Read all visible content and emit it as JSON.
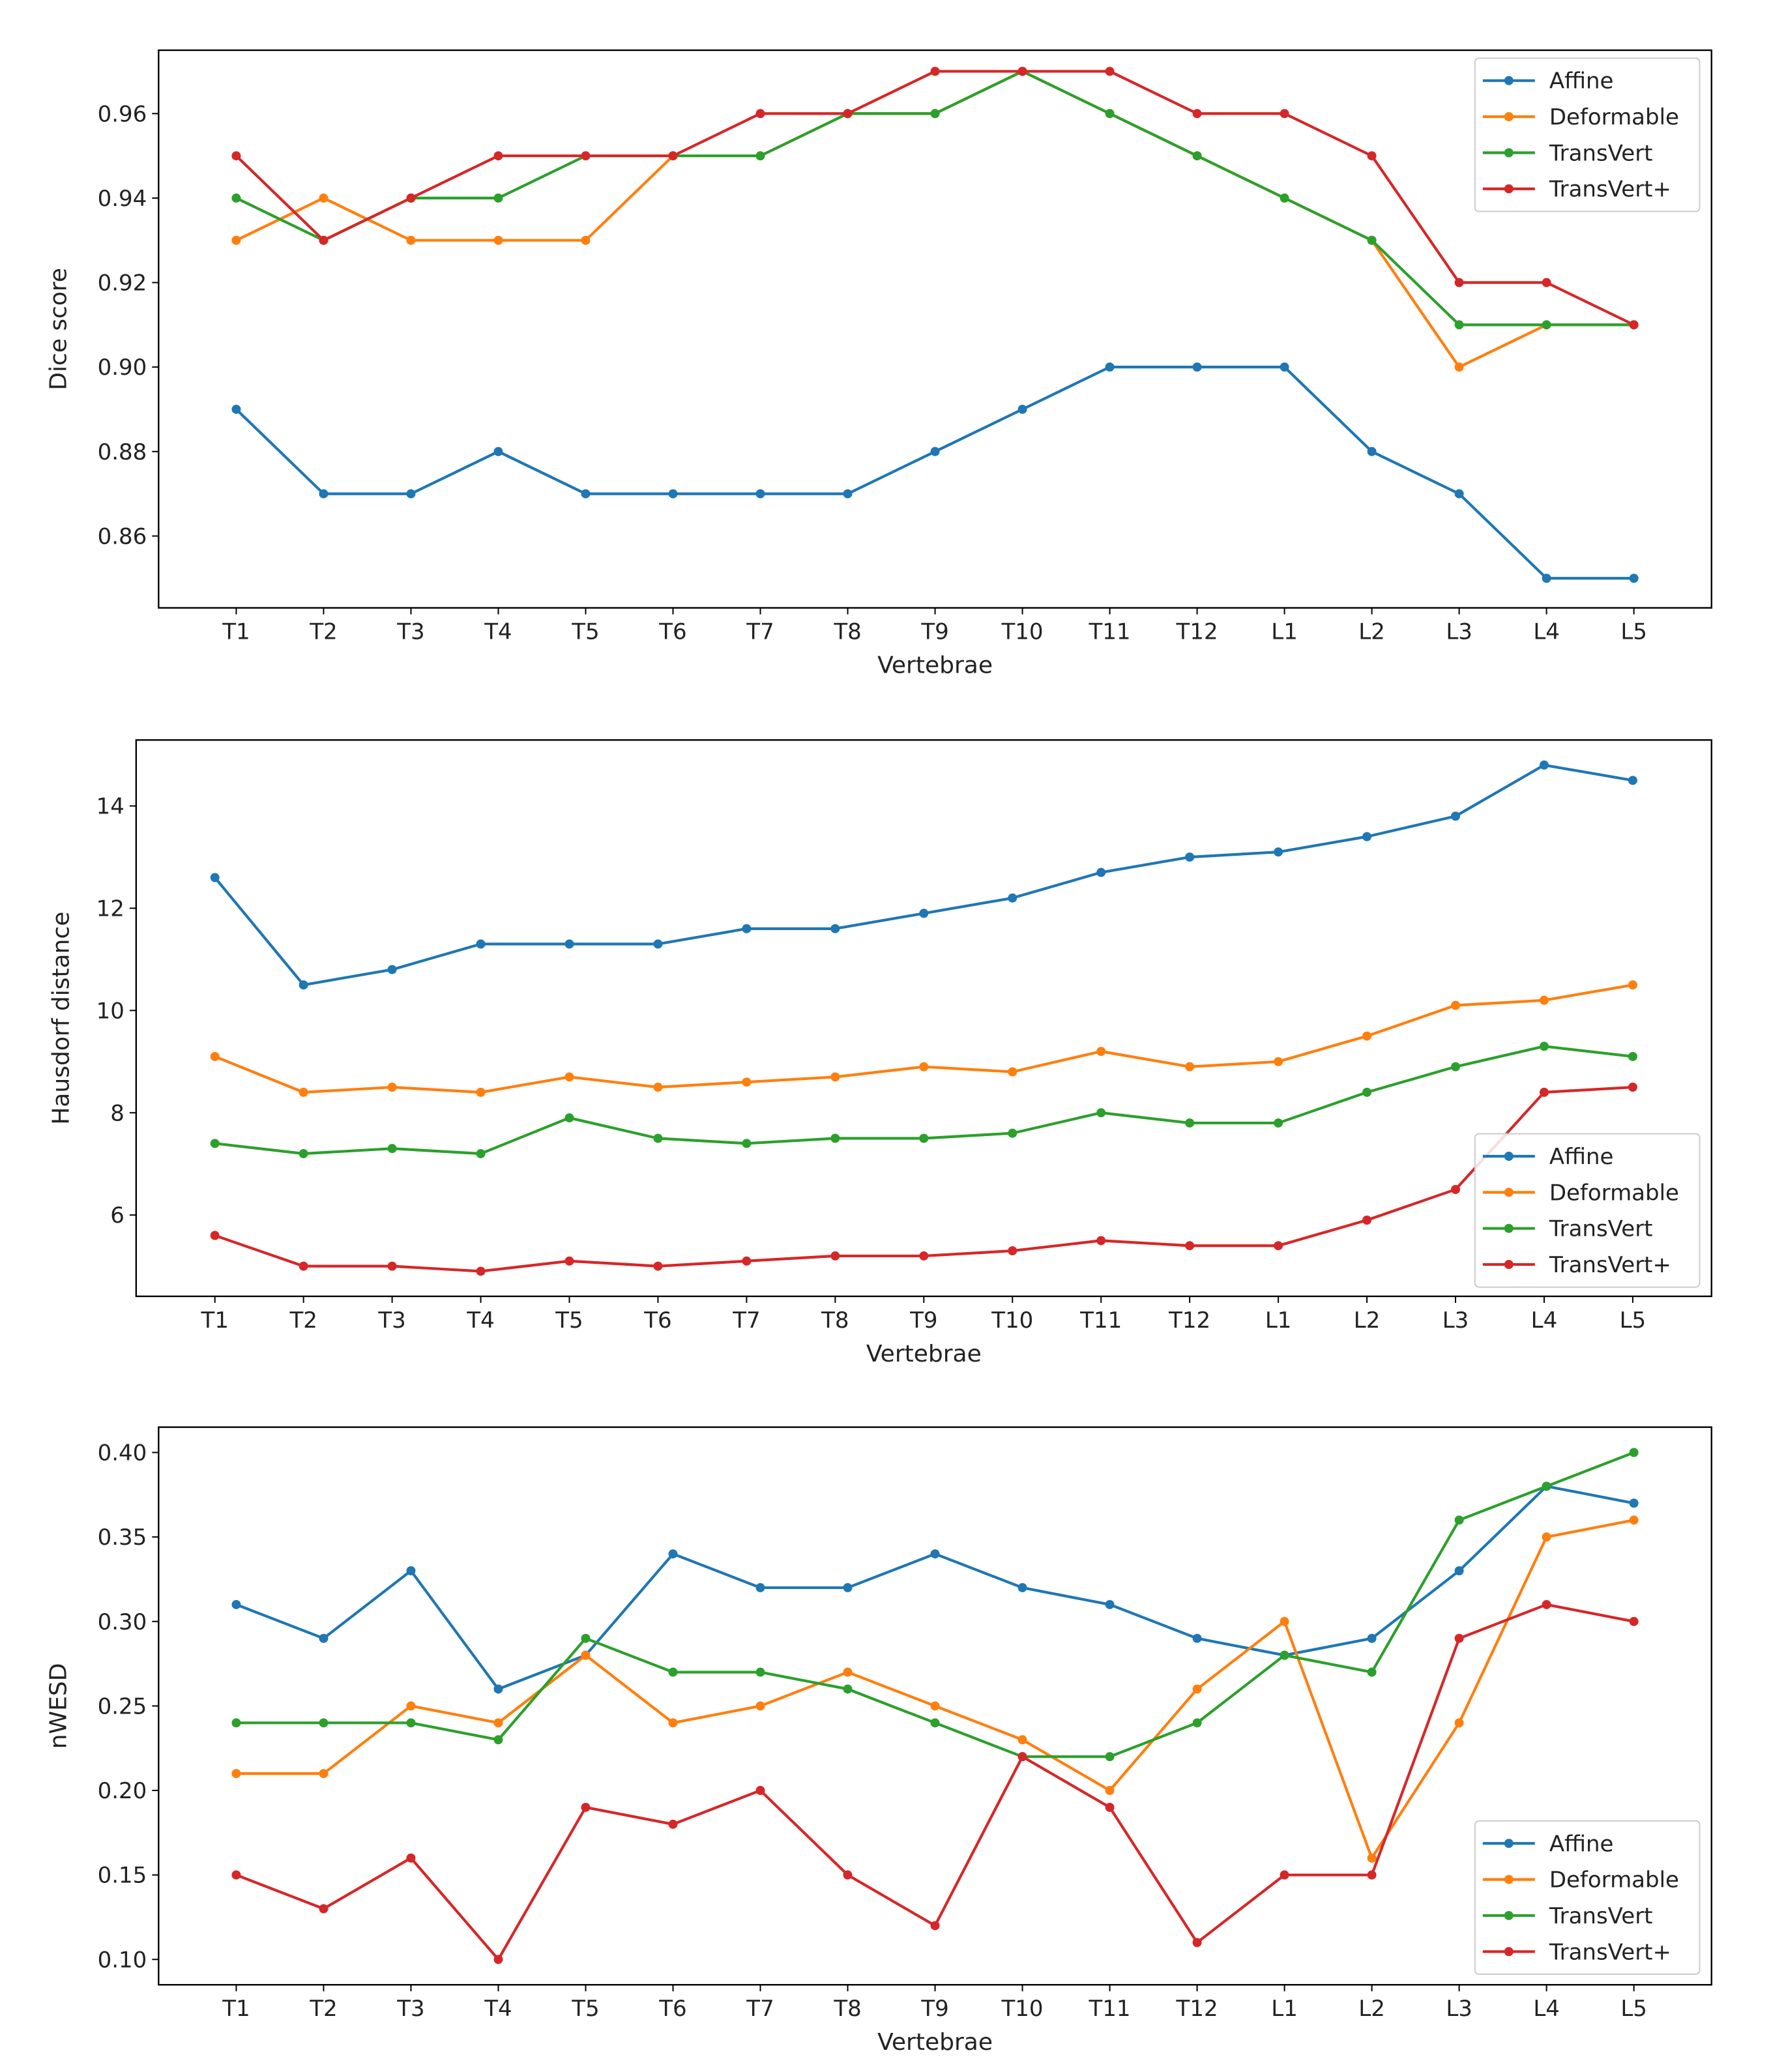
{
  "chart_data": [
    {
      "type": "line",
      "title": "",
      "xlabel": "Vertebrae",
      "ylabel": "Dice score",
      "categories": [
        "T1",
        "T2",
        "T3",
        "T4",
        "T5",
        "T6",
        "T7",
        "T8",
        "T9",
        "T10",
        "T11",
        "T12",
        "L1",
        "L2",
        "L3",
        "L4",
        "L5"
      ],
      "ylim": [
        0.843,
        0.975
      ],
      "yticks": [
        0.86,
        0.88,
        0.9,
        0.92,
        0.94,
        0.96
      ],
      "ytick_labels": [
        "0.86",
        "0.88",
        "0.90",
        "0.92",
        "0.94",
        "0.96"
      ],
      "legend": "top-right",
      "grid": false,
      "series": [
        {
          "name": "Affine",
          "color": "#1f77b4",
          "values": [
            0.89,
            0.87,
            0.87,
            0.88,
            0.87,
            0.87,
            0.87,
            0.87,
            0.88,
            0.89,
            0.9,
            0.9,
            0.9,
            0.88,
            0.87,
            0.85,
            0.85
          ]
        },
        {
          "name": "Deformable",
          "color": "#ff7f0e",
          "values": [
            0.93,
            0.94,
            0.93,
            0.93,
            0.93,
            0.95,
            0.95,
            0.96,
            0.96,
            0.97,
            0.96,
            0.95,
            0.94,
            0.93,
            0.9,
            0.91,
            0.91
          ]
        },
        {
          "name": "TransVert",
          "color": "#2ca02c",
          "values": [
            0.94,
            0.93,
            0.94,
            0.94,
            0.95,
            0.95,
            0.95,
            0.96,
            0.96,
            0.97,
            0.96,
            0.95,
            0.94,
            0.93,
            0.91,
            0.91,
            0.91
          ]
        },
        {
          "name": "TransVert+",
          "color": "#d62728",
          "values": [
            0.95,
            0.93,
            0.94,
            0.95,
            0.95,
            0.95,
            0.96,
            0.96,
            0.97,
            0.97,
            0.97,
            0.96,
            0.96,
            0.95,
            0.92,
            0.92,
            0.91
          ]
        }
      ]
    },
    {
      "type": "line",
      "title": "",
      "xlabel": "Vertebrae",
      "ylabel": "Hausdorf distance",
      "categories": [
        "T1",
        "T2",
        "T3",
        "T4",
        "T5",
        "T6",
        "T7",
        "T8",
        "T9",
        "T10",
        "T11",
        "T12",
        "L1",
        "L2",
        "L3",
        "L4",
        "L5"
      ],
      "ylim": [
        4.41,
        15.29
      ],
      "yticks": [
        6,
        8,
        10,
        12,
        14
      ],
      "ytick_labels": [
        "6",
        "8",
        "10",
        "12",
        "14"
      ],
      "legend": "lower-right",
      "grid": false,
      "series": [
        {
          "name": "Affine",
          "color": "#1f77b4",
          "values": [
            12.6,
            10.5,
            10.8,
            11.3,
            11.3,
            11.3,
            11.6,
            11.6,
            11.9,
            12.2,
            12.7,
            13.0,
            13.1,
            13.4,
            13.8,
            14.8,
            14.5
          ]
        },
        {
          "name": "Deformable",
          "color": "#ff7f0e",
          "values": [
            9.1,
            8.4,
            8.5,
            8.4,
            8.7,
            8.5,
            8.6,
            8.7,
            8.9,
            8.8,
            9.2,
            8.9,
            9.0,
            9.5,
            10.1,
            10.2,
            10.5
          ]
        },
        {
          "name": "TransVert",
          "color": "#2ca02c",
          "values": [
            7.4,
            7.2,
            7.3,
            7.2,
            7.9,
            7.5,
            7.4,
            7.5,
            7.5,
            7.6,
            8.0,
            7.8,
            7.8,
            8.4,
            8.9,
            9.3,
            9.1
          ]
        },
        {
          "name": "TransVert+",
          "color": "#d62728",
          "values": [
            5.6,
            5.0,
            5.0,
            4.9,
            5.1,
            5.0,
            5.1,
            5.2,
            5.2,
            5.3,
            5.5,
            5.4,
            5.4,
            5.9,
            6.5,
            8.4,
            8.5
          ]
        }
      ]
    },
    {
      "type": "line",
      "title": "",
      "xlabel": "Vertebrae",
      "ylabel": "nWESD",
      "categories": [
        "T1",
        "T2",
        "T3",
        "T4",
        "T5",
        "T6",
        "T7",
        "T8",
        "T9",
        "T10",
        "T11",
        "T12",
        "L1",
        "L2",
        "L3",
        "L4",
        "L5"
      ],
      "ylim": [
        0.085,
        0.415
      ],
      "yticks": [
        0.1,
        0.15,
        0.2,
        0.25,
        0.3,
        0.35,
        0.4
      ],
      "ytick_labels": [
        "0.10",
        "0.15",
        "0.20",
        "0.25",
        "0.30",
        "0.35",
        "0.40"
      ],
      "legend": "lower-right",
      "grid": false,
      "series": [
        {
          "name": "Affine",
          "color": "#1f77b4",
          "values": [
            0.31,
            0.29,
            0.33,
            0.26,
            0.28,
            0.34,
            0.32,
            0.32,
            0.34,
            0.32,
            0.31,
            0.29,
            0.28,
            0.29,
            0.33,
            0.38,
            0.37
          ]
        },
        {
          "name": "Deformable",
          "color": "#ff7f0e",
          "values": [
            0.21,
            0.21,
            0.25,
            0.24,
            0.28,
            0.24,
            0.25,
            0.27,
            0.25,
            0.23,
            0.2,
            0.26,
            0.3,
            0.16,
            0.24,
            0.35,
            0.36
          ]
        },
        {
          "name": "TransVert",
          "color": "#2ca02c",
          "values": [
            0.24,
            0.24,
            0.24,
            0.23,
            0.29,
            0.27,
            0.27,
            0.26,
            0.24,
            0.22,
            0.22,
            0.24,
            0.28,
            0.27,
            0.36,
            0.38,
            0.4
          ]
        },
        {
          "name": "TransVert+",
          "color": "#d62728",
          "values": [
            0.15,
            0.13,
            0.16,
            0.1,
            0.19,
            0.18,
            0.2,
            0.15,
            0.12,
            0.22,
            0.19,
            0.11,
            0.15,
            0.15,
            0.29,
            0.31,
            0.3
          ]
        }
      ]
    }
  ]
}
